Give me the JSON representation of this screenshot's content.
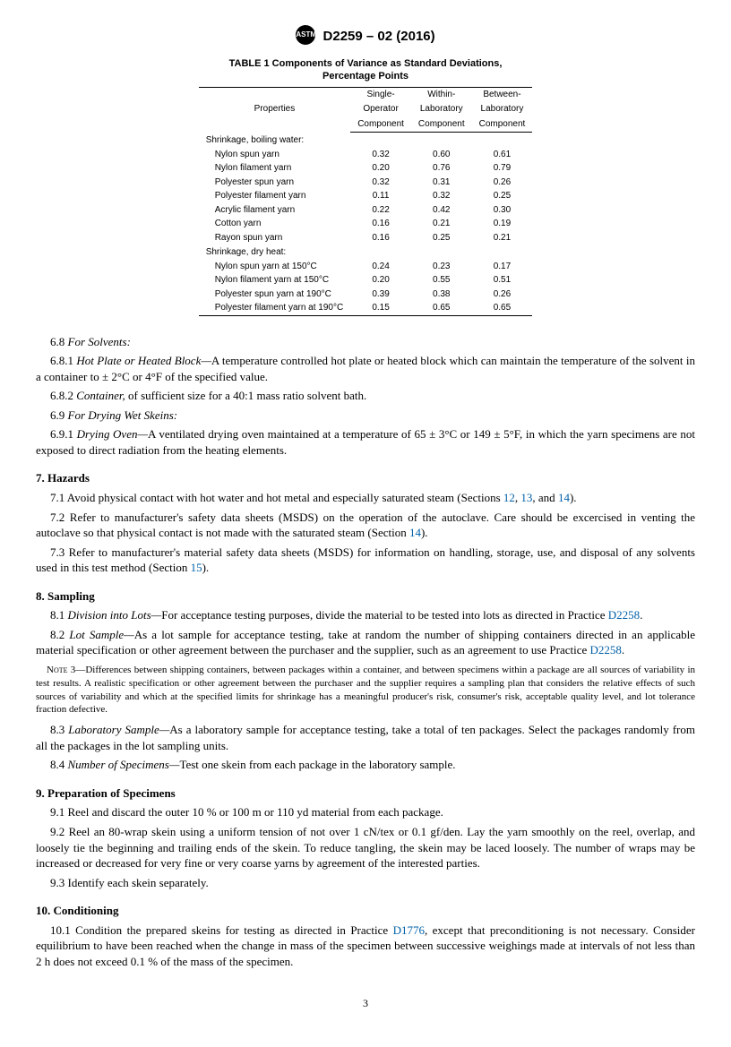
{
  "header": {
    "logo_text": "ASTM",
    "designation": "D2259 – 02 (2016)"
  },
  "table": {
    "title_l1": "TABLE 1 Components of Variance as Standard Deviations,",
    "title_l2": "Percentage Points",
    "col_prop": "Properties",
    "col1_l1": "Single-",
    "col1_l2": "Operator",
    "col1_l3": "Component",
    "col2_l1": "Within-",
    "col2_l2": "Laboratory",
    "col2_l3": "Component",
    "col3_l1": "Between-",
    "col3_l2": "Laboratory",
    "col3_l3": "Component",
    "section1": "Shrinkage, boiling water:",
    "rows1": [
      {
        "p": "Nylon spun yarn",
        "a": "0.32",
        "b": "0.60",
        "c": "0.61"
      },
      {
        "p": "Nylon filament yarn",
        "a": "0.20",
        "b": "0.76",
        "c": "0.79"
      },
      {
        "p": "Polyester spun yarn",
        "a": "0.32",
        "b": "0.31",
        "c": "0.26"
      },
      {
        "p": "Polyester filament yarn",
        "a": "0.11",
        "b": "0.32",
        "c": "0.25"
      },
      {
        "p": "Acrylic filament yarn",
        "a": "0.22",
        "b": "0.42",
        "c": "0.30"
      },
      {
        "p": "Cotton yarn",
        "a": "0.16",
        "b": "0.21",
        "c": "0.19"
      },
      {
        "p": "Rayon spun yarn",
        "a": "0.16",
        "b": "0.25",
        "c": "0.21"
      }
    ],
    "section2": "Shrinkage, dry heat:",
    "rows2": [
      {
        "p": "Nylon spun yarn at 150°C",
        "a": "0.24",
        "b": "0.23",
        "c": "0.17"
      },
      {
        "p": "Nylon filament yarn at 150°C",
        "a": "0.20",
        "b": "0.55",
        "c": "0.51"
      },
      {
        "p": "Polyester spun yarn at 190°C",
        "a": "0.39",
        "b": "0.38",
        "c": "0.26"
      },
      {
        "p": "Polyester filament yarn at 190°C",
        "a": "0.15",
        "b": "0.65",
        "c": "0.65"
      }
    ]
  },
  "body": {
    "s6_8": "6.8 ",
    "s6_8_ital": "For Solvents:",
    "s6_8_1": "6.8.1 ",
    "s6_8_1_ital": "Hot Plate or Heated Block—",
    "s6_8_1_txt": "A temperature controlled hot plate or heated block which can maintain the temperature of the solvent in a container to ± 2°C or 4°F of the specified value.",
    "s6_8_2": "6.8.2 ",
    "s6_8_2_ital": "Container,",
    "s6_8_2_txt": " of sufficient size for a 40:1 mass ratio solvent bath.",
    "s6_9": "6.9 ",
    "s6_9_ital": "For Drying Wet Skeins:",
    "s6_9_1": "6.9.1 ",
    "s6_9_1_ital": "Drying Oven—",
    "s6_9_1_txt": "A ventilated drying oven maintained at a temperature of 65 ± 3°C or 149 ± 5°F, in which the yarn specimens are not exposed to direct radiation from the heating elements.",
    "h7": "7. Hazards",
    "s7_1a": "7.1 Avoid physical contact with hot water and hot metal and especially saturated steam (Sections ",
    "ref12": "12",
    "comma1": ", ",
    "ref13": "13",
    "and_": ", and ",
    "ref14": "14",
    "s7_1b": ").",
    "s7_2a": "7.2 Refer to manufacturer's safety data sheets (MSDS) on the operation of the autoclave. Care should be excercised in venting the autoclave so that physical contact is not made with the saturated steam (Section ",
    "ref14b": "14",
    "s7_2b": ").",
    "s7_3a": "7.3 Refer to manufacturer's material safety data sheets (MSDS) for information on handling, storage, use, and disposal of any solvents used in this test method (Section ",
    "ref15": "15",
    "s7_3b": ").",
    "h8": "8. Sampling",
    "s8_1a": "8.1 ",
    "s8_1_ital": "Division into Lots—",
    "s8_1b": "For acceptance testing purposes, divide the material to be tested into lots as directed in Practice ",
    "refD2258a": "D2258",
    "s8_1c": ".",
    "s8_2a": "8.2 ",
    "s8_2_ital": "Lot Sample—",
    "s8_2b": "As a lot sample for acceptance testing, take at random the number of shipping containers directed in an applicable material specification or other agreement between the purchaser and the supplier, such as an agreement to use Practice ",
    "refD2258b": "D2258",
    "s8_2c": ".",
    "note3_sc": "Note 3—",
    "note3": "Differences between shipping containers, between packages within a container, and between specimens within a package are all sources of variability in test results. A realistic specification or other agreement between the purchaser and the supplier requires a sampling plan that considers the relative effects of such sources of variability and which at the specified limits for shrinkage has a meaningful producer's risk, consumer's risk, acceptable quality level, and lot tolerance fraction defective.",
    "s8_3a": "8.3 ",
    "s8_3_ital": "Laboratory Sample—",
    "s8_3b": "As a laboratory sample for acceptance testing, take a total of ten packages. Select the packages randomly from all the packages in the lot sampling units.",
    "s8_4a": "8.4 ",
    "s8_4_ital": "Number of Specimens—",
    "s8_4b": "Test one skein from each package in the laboratory sample.",
    "h9": "9. Preparation of Specimens",
    "s9_1": "9.1 Reel and discard the outer 10 % or 100 m or 110 yd material from each package.",
    "s9_2": "9.2 Reel an 80-wrap skein using a uniform tension of not over 1 cN/tex or 0.1 gf/den. Lay the yarn smoothly on the reel, overlap, and loosely tie the beginning and trailing ends of the skein. To reduce tangling, the skein may be laced loosely. The number of wraps may be increased or decreased for very fine or very coarse yarns by agreement of the interested parties.",
    "s9_3": "9.3 Identify each skein separately.",
    "h10": "10. Conditioning",
    "s10_1a": "10.1 Condition the prepared skeins for testing as directed in Practice ",
    "refD1776": "D1776",
    "s10_1b": ", except that preconditioning is not necessary. Consider equilibrium to have been reached when the change in mass of the specimen between successive weighings made at intervals of not less than 2 h does not exceed 0.1 % of the mass of the specimen."
  },
  "pagenum": "3",
  "style": {
    "link_color": "#0060a8",
    "body_font": "Times New Roman",
    "table_font": "Arial",
    "body_size_pt": 10,
    "table_size_pt": 8
  }
}
